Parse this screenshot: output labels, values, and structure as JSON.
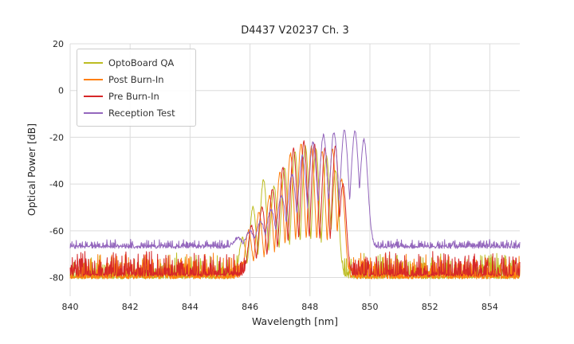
{
  "chart_data": {
    "type": "line",
    "title": "D4437 V20237 Ch. 3",
    "xlabel": "Wavelength [nm]",
    "ylabel": "Optical Power [dB]",
    "xlim": [
      840,
      855
    ],
    "ylim": [
      -88,
      20
    ],
    "xticks": [
      840,
      842,
      844,
      846,
      848,
      850,
      852,
      854
    ],
    "yticks": [
      20,
      0,
      -20,
      -40,
      -60,
      -80
    ],
    "grid": true,
    "grid_color": "#dcdcdc",
    "legend_position": "upper-left",
    "series": [
      {
        "name": "OptoBoard QA",
        "color": "#bcbd22",
        "noise_floor": -80,
        "noise_amp": 7,
        "sigma": 0.11,
        "seed": 11,
        "peaks": [
          [
            845.75,
            -63
          ],
          [
            846.1,
            -50
          ],
          [
            846.45,
            -38
          ],
          [
            846.8,
            -41
          ],
          [
            847.15,
            -33
          ],
          [
            847.5,
            -26
          ],
          [
            847.85,
            -24
          ],
          [
            848.2,
            -25
          ],
          [
            848.55,
            -28
          ],
          [
            848.85,
            -34
          ]
        ]
      },
      {
        "name": "Post Burn-In",
        "color": "#ff7f0e",
        "noise_floor": -80,
        "noise_amp": 7,
        "sigma": 0.11,
        "seed": 22,
        "peaks": [
          [
            845.95,
            -60
          ],
          [
            846.3,
            -52
          ],
          [
            846.65,
            -45
          ],
          [
            847.0,
            -35
          ],
          [
            847.35,
            -27
          ],
          [
            847.7,
            -23
          ],
          [
            848.05,
            -24
          ],
          [
            848.4,
            -26
          ],
          [
            848.75,
            -25
          ],
          [
            849.05,
            -38
          ]
        ]
      },
      {
        "name": "Pre Burn-In",
        "color": "#d62728",
        "noise_floor": -79,
        "noise_amp": 7,
        "sigma": 0.11,
        "seed": 33,
        "peaks": [
          [
            846.05,
            -58
          ],
          [
            846.4,
            -50
          ],
          [
            846.75,
            -42
          ],
          [
            847.1,
            -33
          ],
          [
            847.45,
            -25
          ],
          [
            847.8,
            -22
          ],
          [
            848.15,
            -23
          ],
          [
            848.5,
            -25
          ],
          [
            848.85,
            -24
          ],
          [
            849.1,
            -40
          ]
        ]
      },
      {
        "name": "Reception Test",
        "color": "#9467bd",
        "noise_floor": -67,
        "noise_amp": 2.2,
        "sigma": 0.13,
        "seed": 44,
        "peaks": [
          [
            845.6,
            -63
          ],
          [
            846.0,
            -60
          ],
          [
            846.35,
            -56
          ],
          [
            846.7,
            -51
          ],
          [
            847.05,
            -45
          ],
          [
            847.4,
            -36
          ],
          [
            847.75,
            -28
          ],
          [
            848.1,
            -22
          ],
          [
            848.45,
            -19
          ],
          [
            848.8,
            -18
          ],
          [
            849.15,
            -17
          ],
          [
            849.5,
            -17.5
          ],
          [
            849.8,
            -21
          ]
        ]
      }
    ]
  }
}
